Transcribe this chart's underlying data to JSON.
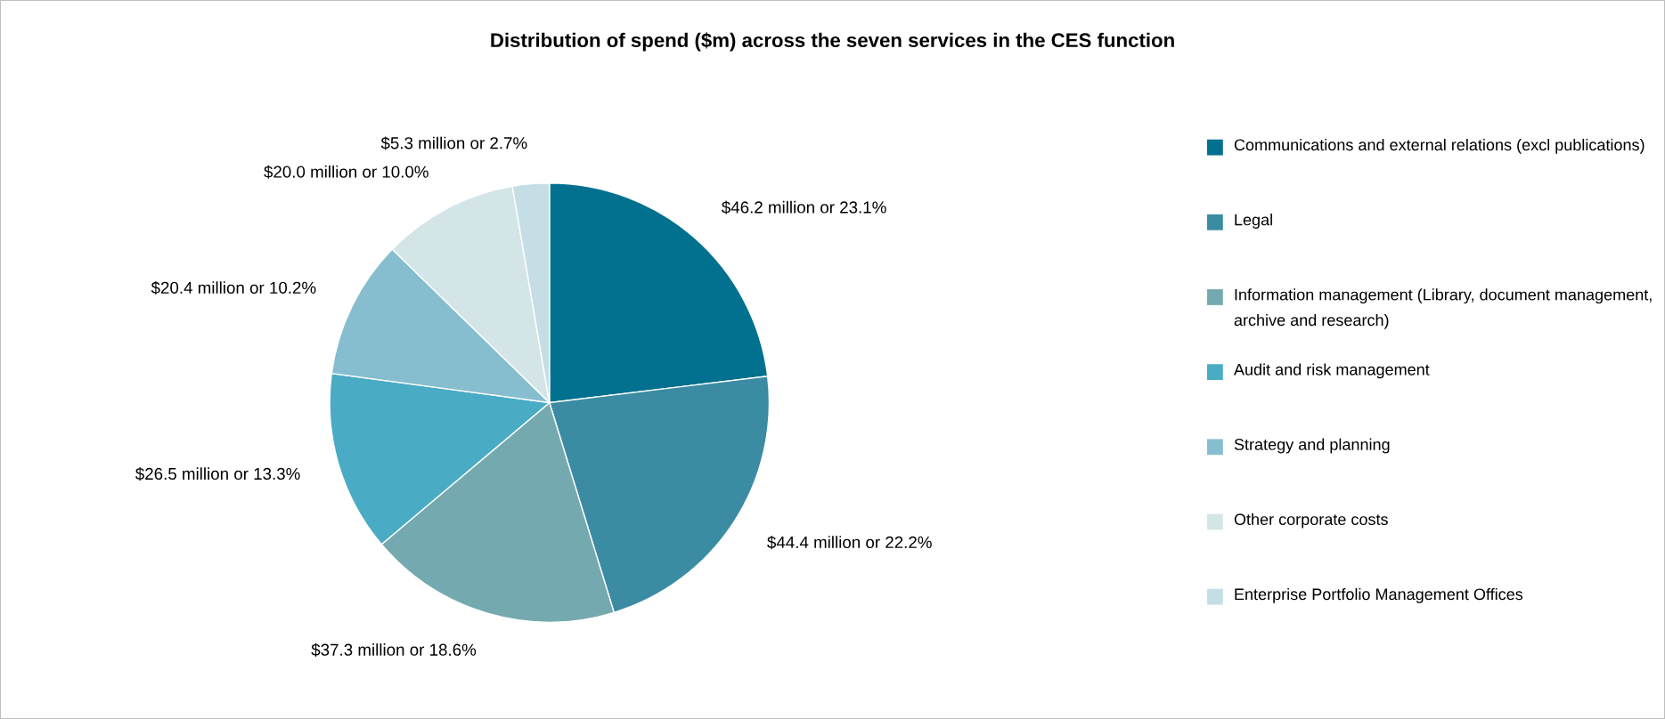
{
  "chart_data": {
    "type": "pie",
    "title": "Distribution of spend ($m) across the seven services in the CES function",
    "categories": [
      "Communications and external relations (excl publications)",
      "Legal",
      "Information management (Library, document management, archive and research)",
      "Audit and risk management",
      "Strategy and planning",
      "Other corporate costs",
      "Enterprise Portfolio Management Offices"
    ],
    "values": [
      23.1,
      22.2,
      18.6,
      13.3,
      10.2,
      10.0,
      2.7
    ],
    "value_labels": [
      "$46.2 million or 23.1%",
      "$44.4 million or 22.2%",
      "$37.3 million or 18.6%",
      "$26.5 million or 13.3%",
      "$20.4 million or 10.2%",
      "$20.0 million or 10.0%",
      "$5.3 million or 2.7%"
    ],
    "colors": [
      "#02708f",
      "#3b8ca3",
      "#74aaaf",
      "#4aabc5",
      "#86bed0",
      "#d4e5e8",
      "#c5dee6"
    ],
    "legend": "right"
  }
}
